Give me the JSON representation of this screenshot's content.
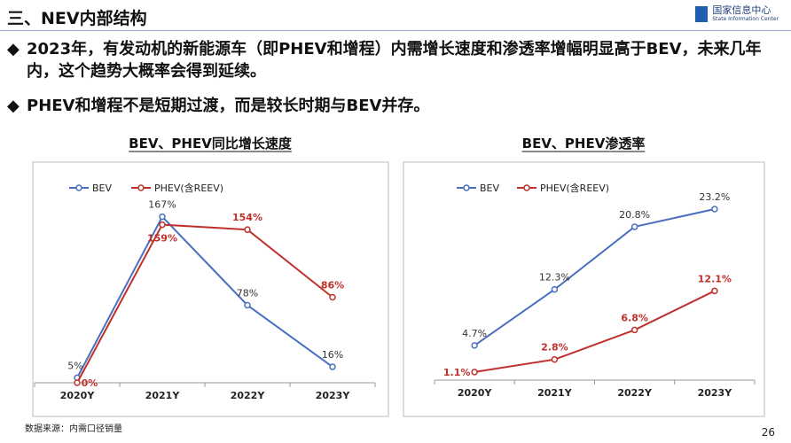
{
  "header": {
    "title": "三、NEV内部结构",
    "logo_cn": "国家信息中心",
    "logo_en": "State Information Center"
  },
  "bullets": [
    "2023年，有发动机的新能源车（即PHEV和增程）内需增长速度和渗透率增幅明显高于BEV，未来几年内，这个趋势大概率会得到延续。",
    "PHEV和增程不是短期过渡，而是较长时期与BEV并存。"
  ],
  "footer": {
    "source": "数据来源：内需口径销量",
    "page": "26"
  },
  "chart_data": [
    {
      "type": "line",
      "title": "BEV、PHEV同比增长速度",
      "categories": [
        "2020Y",
        "2021Y",
        "2022Y",
        "2023Y"
      ],
      "ylim": [
        0,
        180
      ],
      "series": [
        {
          "name": "BEV",
          "color": "#4a6fbf",
          "values": [
            5,
            167,
            78,
            16
          ],
          "value_labels": [
            "5%",
            "167%",
            "78%",
            "16%"
          ]
        },
        {
          "name": "PHEV(含REEV)",
          "color": "#c0302b",
          "values": [
            0,
            159,
            154,
            86
          ],
          "value_labels": [
            "0%",
            "159%",
            "154%",
            "86%"
          ]
        }
      ]
    },
    {
      "type": "line",
      "title": "BEV、PHEV渗透率",
      "categories": [
        "2020Y",
        "2021Y",
        "2022Y",
        "2023Y"
      ],
      "ylim": [
        0,
        25
      ],
      "series": [
        {
          "name": "BEV",
          "color": "#4a6fbf",
          "values": [
            4.7,
            12.3,
            20.8,
            23.2
          ],
          "value_labels": [
            "4.7%",
            "12.3%",
            "20.8%",
            "23.2%"
          ]
        },
        {
          "name": "PHEV(含REEV)",
          "color": "#c0302b",
          "values": [
            1.1,
            2.8,
            6.8,
            12.1
          ],
          "value_labels": [
            "1.1%",
            "2.8%",
            "6.8%",
            "12.1%"
          ]
        }
      ]
    }
  ]
}
